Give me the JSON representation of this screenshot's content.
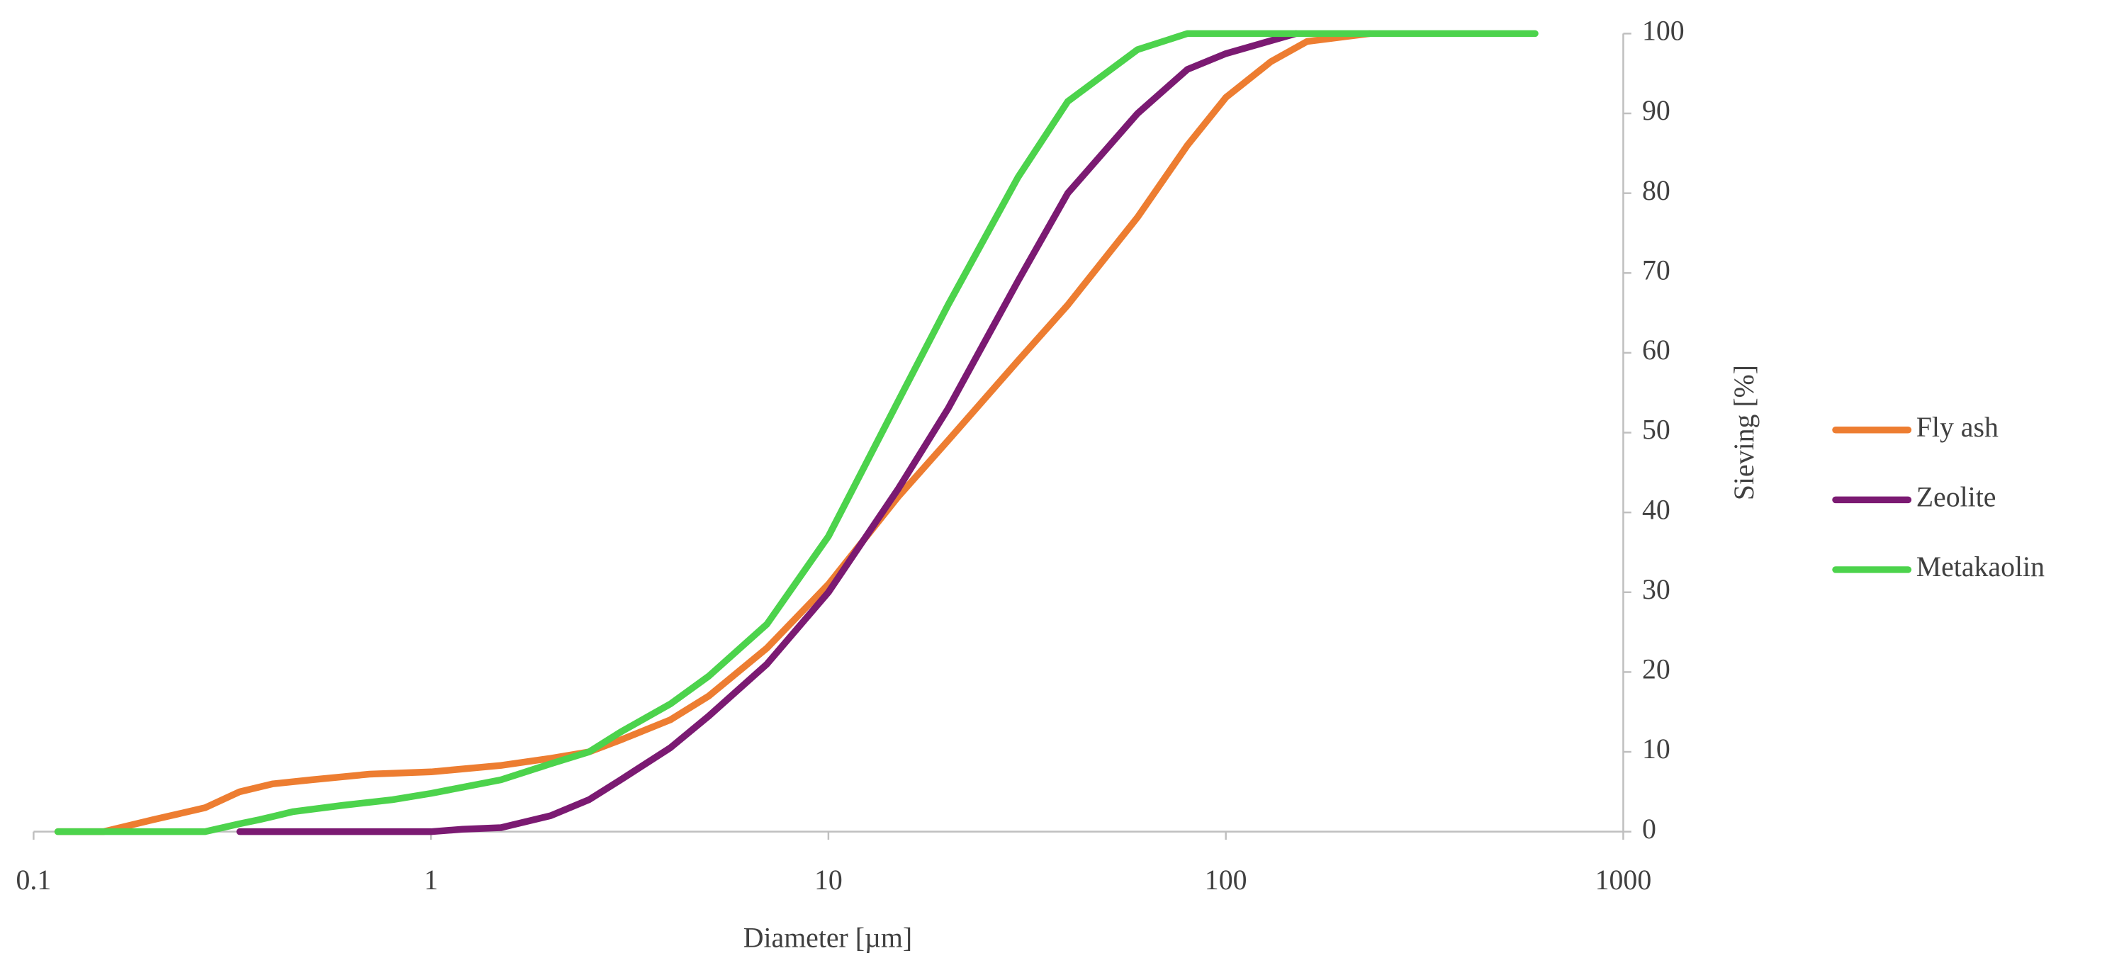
{
  "chart_data": {
    "type": "line",
    "x_label": "Diameter [µm]",
    "y_label": "Sieving [%]",
    "xscale": "log",
    "xlim": [
      0.1,
      1000
    ],
    "xticks": [
      0.1,
      1,
      10,
      100,
      1000
    ],
    "ylim": [
      0,
      100
    ],
    "yticks": [
      0,
      10,
      20,
      30,
      40,
      50,
      60,
      70,
      80,
      90,
      100
    ],
    "legend": "right",
    "series": [
      {
        "name": "Fly ash",
        "color": "#ed7d31",
        "x": [
          0.115,
          0.15,
          0.2,
          0.27,
          0.33,
          0.4,
          0.5,
          0.7,
          1,
          1.5,
          2,
          2.5,
          3,
          4,
          5,
          7,
          10,
          15,
          20,
          30,
          40,
          60,
          80,
          100,
          130,
          160,
          230
        ],
        "values": [
          0,
          0,
          1.5,
          3,
          5,
          6,
          6.5,
          7.2,
          7.5,
          8.3,
          9.2,
          10,
          11.5,
          14,
          17,
          23,
          31,
          42,
          49,
          59,
          66,
          77,
          86,
          92,
          96.5,
          99,
          100
        ]
      },
      {
        "name": "Zeolite",
        "color": "#7b1a72",
        "x": [
          0.33,
          1,
          1.2,
          1.5,
          2,
          2.5,
          3,
          4,
          5,
          7,
          10,
          15,
          20,
          30,
          40,
          60,
          80,
          100,
          150
        ],
        "values": [
          0,
          0,
          0.3,
          0.5,
          2,
          4,
          6.5,
          10.5,
          14.5,
          21,
          30,
          43,
          53,
          69,
          80,
          90,
          95.5,
          97.5,
          100
        ]
      },
      {
        "name": "Metakaolin",
        "color": "#4cd34c",
        "x": [
          0.115,
          0.27,
          0.33,
          0.37,
          0.45,
          0.6,
          0.8,
          1,
          1.5,
          2,
          2.5,
          3,
          4,
          5,
          7,
          10,
          15,
          20,
          30,
          40,
          60,
          80,
          600
        ],
        "values": [
          0,
          0,
          1,
          1.5,
          2.5,
          3.3,
          4,
          4.8,
          6.5,
          8.5,
          10,
          12.5,
          16,
          19.5,
          26,
          37,
          54,
          66,
          82,
          91.5,
          98,
          100,
          100
        ]
      }
    ]
  }
}
